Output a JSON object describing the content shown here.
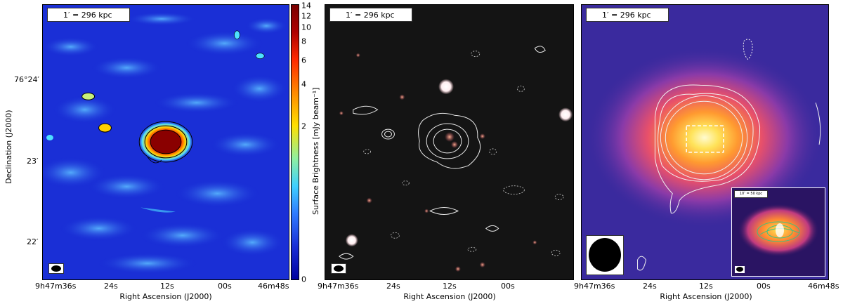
{
  "scale_label": "1′ = 296 kpc",
  "inset_scale_label": "10″ = 50 kpc",
  "y_axis": {
    "title": "Declination (J2000)",
    "ticks": [
      "76°24′",
      "23′",
      "22′"
    ]
  },
  "x_axis": {
    "title": "Right Ascension (J2000)",
    "ticks": [
      "9h47m36s",
      "24s",
      "12s",
      "00s",
      "46m48s"
    ]
  },
  "colorbar": {
    "title": "Surface Brightness [mJy beam⁻¹]",
    "ticks": [
      "14",
      "12",
      "10",
      "8",
      "6",
      "4",
      "2",
      "0"
    ]
  },
  "colors": {
    "radio_bg": "#1a2fd6",
    "optical_bg": "#141414",
    "xray_bg": "#3a2a9e"
  }
}
